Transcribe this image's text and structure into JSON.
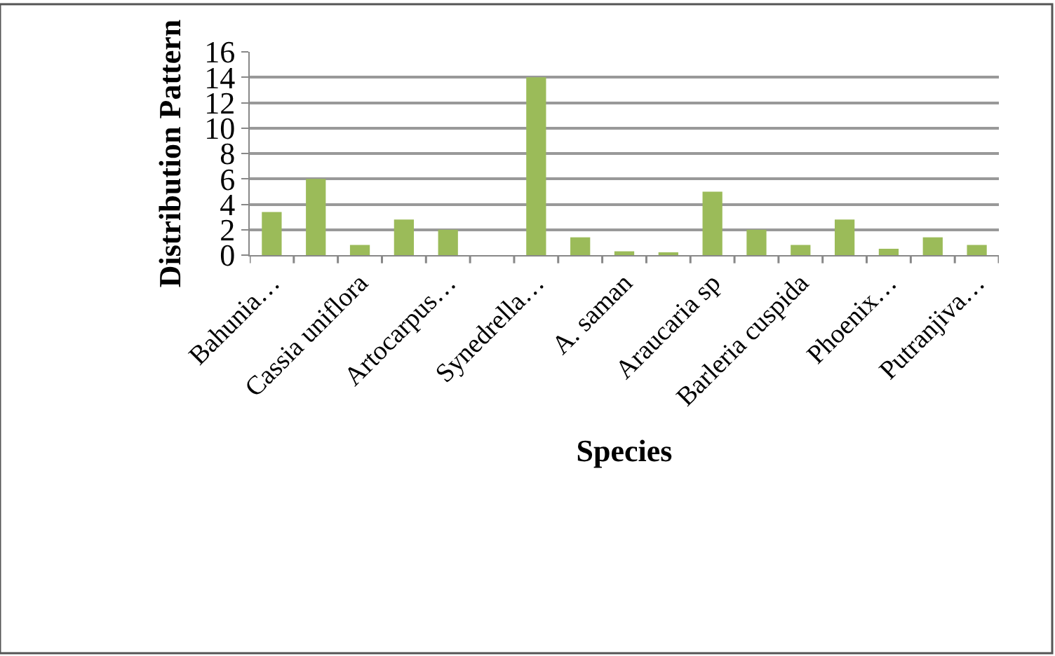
{
  "chart_data": {
    "type": "bar",
    "xlabel": "Species",
    "ylabel": "Distribution Pattern",
    "categories": [
      "Bahunia…",
      null,
      "Cassia uniflora",
      null,
      "Artocarpus…",
      null,
      "Synedrella…",
      null,
      "A. saman",
      null,
      "Araucaria sp",
      null,
      "Barleria cuspida",
      null,
      "Phoenix…",
      null,
      "Putranjiva…"
    ],
    "values": [
      3.4,
      6,
      0.8,
      2.8,
      2.0,
      0,
      14,
      1.4,
      0.3,
      0.2,
      5,
      2,
      0.8,
      2.8,
      0.5,
      1.4,
      0.8
    ],
    "color": "#9bbb59",
    "ylim": [
      0,
      16
    ],
    "yticks": [
      0,
      2,
      4,
      6,
      8,
      10,
      12,
      14,
      16
    ],
    "grid": "y",
    "legend": false
  }
}
